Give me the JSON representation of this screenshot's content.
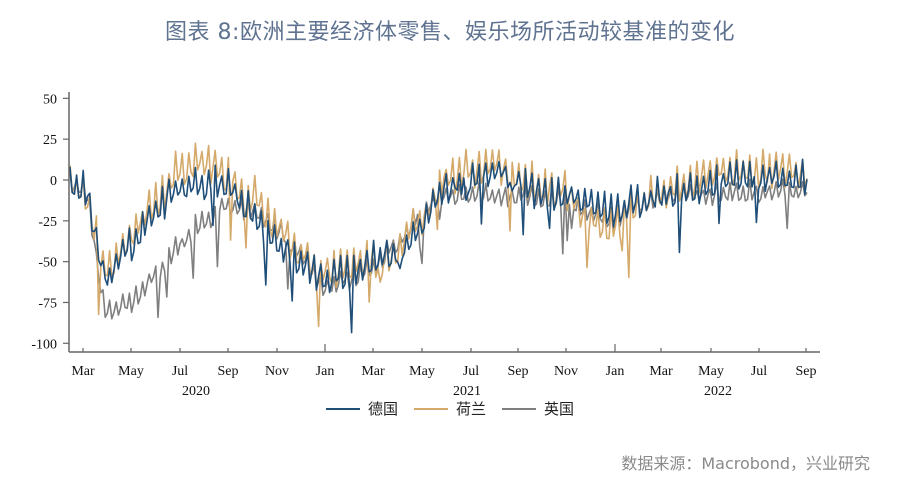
{
  "title": "图表 8:欧洲主要经济体零售、娱乐场所活动较基准的变化",
  "source": "数据来源：Macrobond，兴业研究",
  "colors": {
    "germany": "#1f4e79",
    "netherlands": "#d4a96a",
    "uk": "#7f7f7f",
    "axis": "#666666"
  },
  "chart_data": {
    "type": "line",
    "title": "图表 8:欧洲主要经济体零售、娱乐场所活动较基准的变化",
    "xlabel": "",
    "ylabel": "",
    "ylim": [
      -100,
      50
    ],
    "yticks": [
      50,
      25,
      0,
      -25,
      -50,
      -75,
      -100
    ],
    "x_tick_labels": [
      "Mar",
      "May",
      "Jul",
      "Sep",
      "Nov",
      "Jan",
      "Mar",
      "May",
      "Jul",
      "Sep",
      "Nov",
      "Jan",
      "Mar",
      "May",
      "Jul",
      "Sep"
    ],
    "year_labels": [
      {
        "label": "2020",
        "under": "Jul"
      },
      {
        "label": "2021",
        "under": "Jul"
      },
      {
        "label": "2022",
        "under": "May"
      }
    ],
    "grid": false,
    "legend_position": "bottom-center",
    "x": [
      "2020-02",
      "2020-03",
      "2020-04",
      "2020-05",
      "2020-06",
      "2020-07",
      "2020-08",
      "2020-09",
      "2020-10",
      "2020-11",
      "2020-12",
      "2021-01",
      "2021-02",
      "2021-03",
      "2021-04",
      "2021-05",
      "2021-06",
      "2021-07",
      "2021-08",
      "2021-09",
      "2021-10",
      "2021-11",
      "2021-12",
      "2022-01",
      "2022-02",
      "2022-03",
      "2022-04",
      "2022-05",
      "2022-06",
      "2022-07",
      "2022-08",
      "2022-09"
    ],
    "series": [
      {
        "name": "德国",
        "color": "#1f4e79",
        "values": [
          2,
          -5,
          -60,
          -40,
          -20,
          -5,
          -3,
          -5,
          -20,
          -40,
          -50,
          -62,
          -58,
          -50,
          -45,
          -30,
          -5,
          0,
          5,
          0,
          -10,
          -10,
          -15,
          -20,
          -15,
          -10,
          -8,
          -5,
          0,
          0,
          0,
          0
        ]
      },
      {
        "name": "荷兰",
        "color": "#d4a96a",
        "values": [
          5,
          -10,
          -55,
          -35,
          -15,
          5,
          10,
          0,
          -10,
          -30,
          -45,
          -58,
          -55,
          -50,
          -45,
          -25,
          0,
          5,
          8,
          2,
          -5,
          -8,
          -25,
          -30,
          -15,
          -8,
          -5,
          5,
          5,
          5,
          5,
          5
        ]
      },
      {
        "name": "英国",
        "color": "#7f7f7f",
        "values": [
          2,
          -5,
          -80,
          -75,
          -60,
          -40,
          -25,
          -15,
          -20,
          -30,
          -45,
          -65,
          -62,
          -55,
          -40,
          -20,
          -10,
          -8,
          -10,
          -10,
          -12,
          -12,
          -20,
          -25,
          -15,
          -10,
          -10,
          -10,
          -8,
          -8,
          -8,
          -8
        ]
      }
    ]
  },
  "legend": [
    {
      "label": "德国",
      "color": "#1f4e79"
    },
    {
      "label": "荷兰",
      "color": "#d4a96a"
    },
    {
      "label": "英国",
      "color": "#7f7f7f"
    }
  ]
}
